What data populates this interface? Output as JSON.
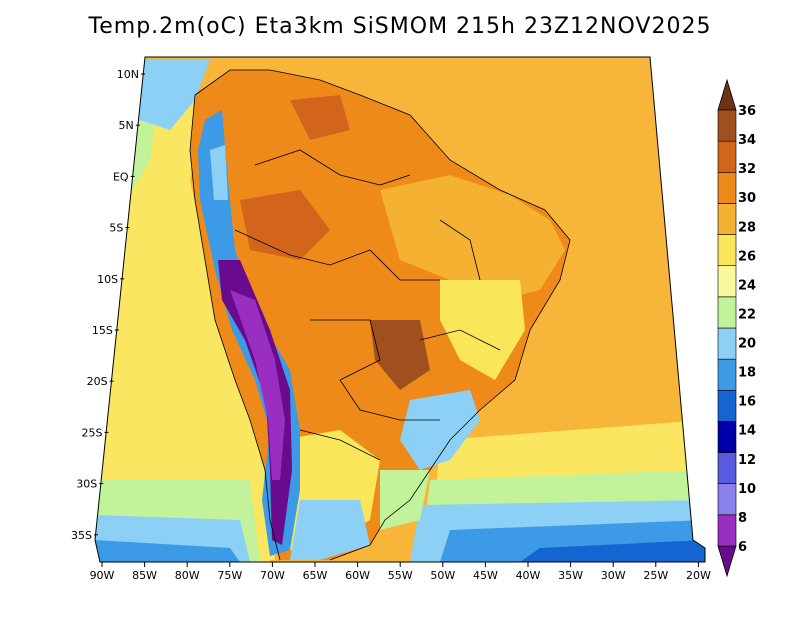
{
  "title": "Temp.2m(oC) Eta3km SiSMOM 215h 23Z12NOV2025",
  "map": {
    "lat_labels": [
      "10N",
      "5N",
      "EQ",
      "5S",
      "10S",
      "15S",
      "20S",
      "25S",
      "30S",
      "35S"
    ],
    "lon_labels": [
      "90W",
      "85W",
      "80W",
      "75W",
      "70W",
      "65W",
      "60W",
      "55W",
      "50W",
      "45W",
      "40W",
      "35W",
      "30W",
      "25W",
      "20W"
    ],
    "lon_range": [
      -91,
      -19
    ],
    "lat_range": [
      -38,
      11
    ]
  },
  "colorbar": {
    "labels": [
      "6",
      "8",
      "10",
      "12",
      "14",
      "16",
      "18",
      "20",
      "22",
      "24",
      "26",
      "28",
      "30",
      "32",
      "34",
      "36"
    ],
    "colors": [
      "#6a0a8c",
      "#9a2ec0",
      "#8a80ee",
      "#5a5ae0",
      "#0000aa",
      "#1464d2",
      "#3c9ae6",
      "#8cd0f6",
      "#c2f29a",
      "#fafa9c",
      "#fae65a",
      "#f5b232",
      "#ee8a1a",
      "#d2641c",
      "#a0501e",
      "#6e3214"
    ]
  }
}
